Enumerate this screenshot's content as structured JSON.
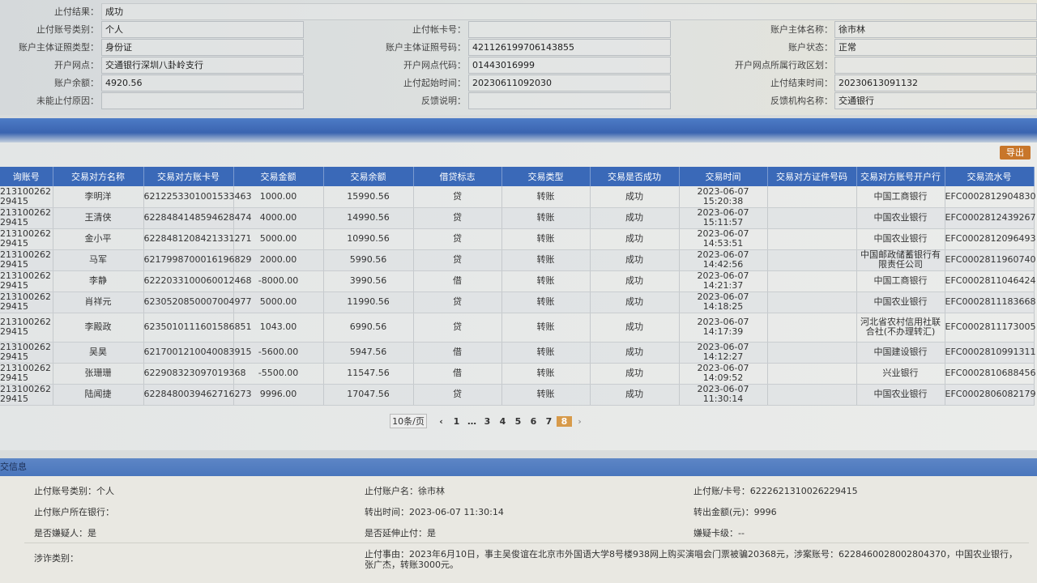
{
  "info": {
    "result_label": "止付结果：",
    "result_value": "成功",
    "rows": [
      [
        {
          "l": "止付账号类别：",
          "v": "个人"
        },
        {
          "l": "止付帐卡号：",
          "v": ""
        },
        {
          "l": "账户主体名称：",
          "v": "徐市林"
        }
      ],
      [
        {
          "l": "账户主体证照类型：",
          "v": "身份证"
        },
        {
          "l": "账户主体证照号码：",
          "v": "421126199706143855"
        },
        {
          "l": "账户状态：",
          "v": "正常"
        }
      ],
      [
        {
          "l": "开户网点：",
          "v": "交通银行深圳八卦岭支行"
        },
        {
          "l": "开户网点代码：",
          "v": "01443016999"
        },
        {
          "l": "开户网点所属行政区划：",
          "v": ""
        }
      ],
      [
        {
          "l": "账户余额：",
          "v": "4920.56"
        },
        {
          "l": "止付起始时间：",
          "v": "20230611092030"
        },
        {
          "l": "止付结束时间：",
          "v": "20230613091132"
        }
      ],
      [
        {
          "l": "未能止付原因：",
          "v": ""
        },
        {
          "l": "反馈说明：",
          "v": ""
        },
        {
          "l": "反馈机构名称：",
          "v": "交通银行"
        }
      ]
    ]
  },
  "export_label": "导出",
  "table": {
    "headers": [
      "询账号",
      "交易对方名称",
      "交易对方账卡号",
      "交易金额",
      "交易余额",
      "借贷标志",
      "交易类型",
      "交易是否成功",
      "交易时间",
      "交易对方证件号码",
      "交易对方账号开户行",
      "交易流水号"
    ],
    "rows": [
      [
        "213100262 29415",
        "李明洋",
        "6212253301001533463",
        "1000.00",
        "15990.56",
        "贷",
        "转账",
        "成功",
        "2023-06-07 15:20:38",
        "",
        "中国工商银行",
        "EFC0002812904830"
      ],
      [
        "213100262 29415",
        "王清侠",
        "6228484148594628474",
        "4000.00",
        "14990.56",
        "贷",
        "转账",
        "成功",
        "2023-06-07 15:11:57",
        "",
        "中国农业银行",
        "EFC0002812439267"
      ],
      [
        "213100262 29415",
        "金小平",
        "6228481208421331271",
        "5000.00",
        "10990.56",
        "贷",
        "转账",
        "成功",
        "2023-06-07 14:53:51",
        "",
        "中国农业银行",
        "EFC0002812096493"
      ],
      [
        "213100262 29415",
        "马军",
        "6217998700016196829",
        "2000.00",
        "5990.56",
        "贷",
        "转账",
        "成功",
        "2023-06-07 14:42:56",
        "",
        "中国邮政储蓄银行有限责任公司",
        "EFC0002811960740"
      ],
      [
        "213100262 29415",
        "李静",
        "6222033100060012468",
        "-8000.00",
        "3990.56",
        "借",
        "转账",
        "成功",
        "2023-06-07 14:21:37",
        "",
        "中国工商银行",
        "EFC0002811046424"
      ],
      [
        "213100262 29415",
        "肖祥元",
        "6230520850007004977",
        "5000.00",
        "11990.56",
        "贷",
        "转账",
        "成功",
        "2023-06-07 14:18:25",
        "",
        "中国农业银行",
        "EFC0002811183668"
      ],
      [
        "213100262 29415",
        "李殿政",
        "6235010111601586851",
        "1043.00",
        "6990.56",
        "贷",
        "转账",
        "成功",
        "2023-06-07 14:17:39",
        "",
        "河北省农村信用社联合社(不办理转汇)",
        "EFC0002811173005"
      ],
      [
        "213100262 29415",
        "吴昊",
        "6217001210040083915",
        "-5600.00",
        "5947.56",
        "借",
        "转账",
        "成功",
        "2023-06-07 14:12:27",
        "",
        "中国建设银行",
        "EFC0002810991311"
      ],
      [
        "213100262 29415",
        "张珊珊",
        "622908323097019368",
        "-5500.00",
        "11547.56",
        "借",
        "转账",
        "成功",
        "2023-06-07 14:09:52",
        "",
        "兴业银行",
        "EFC0002810688456"
      ],
      [
        "213100262 29415",
        "陆闻捷",
        "6228480039462716273",
        "9996.00",
        "17047.56",
        "贷",
        "转账",
        "成功",
        "2023-06-07 11:30:14",
        "",
        "中国农业银行",
        "EFC0002806082179"
      ]
    ]
  },
  "pager": {
    "size": "10条/页",
    "prev": "‹",
    "next": "›",
    "pages": [
      "1",
      "…",
      "3",
      "4",
      "5",
      "6",
      "7",
      "8"
    ],
    "current": "8"
  },
  "detail": {
    "title": "交信息",
    "fields": [
      "止付账号类别：个人",
      "止付账户名：徐市林",
      "止付账/卡号：6222621310026229415",
      "止付账户所在银行：",
      "转出时间：2023-06-07 11:30:14",
      "转出金额(元)：9996",
      "是否嫌疑人：是",
      "是否延伸止付：是",
      "嫌疑卡级：--"
    ],
    "fraud_label": "涉诈类别：",
    "reason": "止付事由：2023年6月10日，事主吴俊谊在北京市外国语大学8号楼938网上购买演唱会门票被骗20368元，涉案账号：6228460028002804370，中国农业银行，张广杰，转账3000元。"
  }
}
